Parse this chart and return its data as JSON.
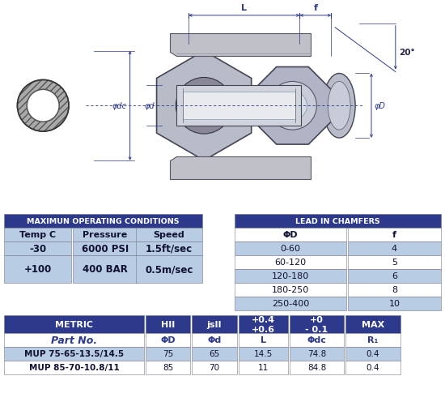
{
  "max_op_title": "MAXIMUN OPERATING CONDITIONS",
  "max_op_header": [
    "Temp C",
    "Pressure",
    "Speed"
  ],
  "max_op_rows": [
    [
      "-30",
      "6000 PSI",
      "1.5ft/sec"
    ],
    [
      "+100",
      "400 BAR",
      "0.5m/sec"
    ]
  ],
  "chamfer_title": "LEAD IN CHAMFERS",
  "chamfer_header": [
    "ΦD",
    "f"
  ],
  "chamfer_rows": [
    [
      "0-60",
      "4"
    ],
    [
      "60-120",
      "5"
    ],
    [
      "120-180",
      "6"
    ],
    [
      "180-250",
      "8"
    ],
    [
      "250-400",
      "10"
    ]
  ],
  "metric_header": [
    "METRIC",
    "HII",
    "jsII",
    "+0.4\n+0.6",
    "+0\n- 0.1",
    "MAX"
  ],
  "metric_subheader": [
    "Part No.",
    "ΦD",
    "Φd",
    "L",
    "Φdc",
    "R₁"
  ],
  "metric_rows": [
    [
      "MUP 75-65-13.5/14.5",
      "75",
      "65",
      "14.5",
      "74.8",
      "0.4"
    ],
    [
      "MUP 85-70-10.8/11",
      "85",
      "70",
      "11",
      "84.8",
      "0.4"
    ]
  ],
  "header_bg": "#2d3a8c",
  "header_fg": "#ffffff",
  "row_bg_light": "#b8cce4",
  "row_bg_white": "#ffffff",
  "subheader_fg": "#2d3a8c",
  "dim_line_color": "#2d3a8c",
  "bg_color": "#ffffff"
}
